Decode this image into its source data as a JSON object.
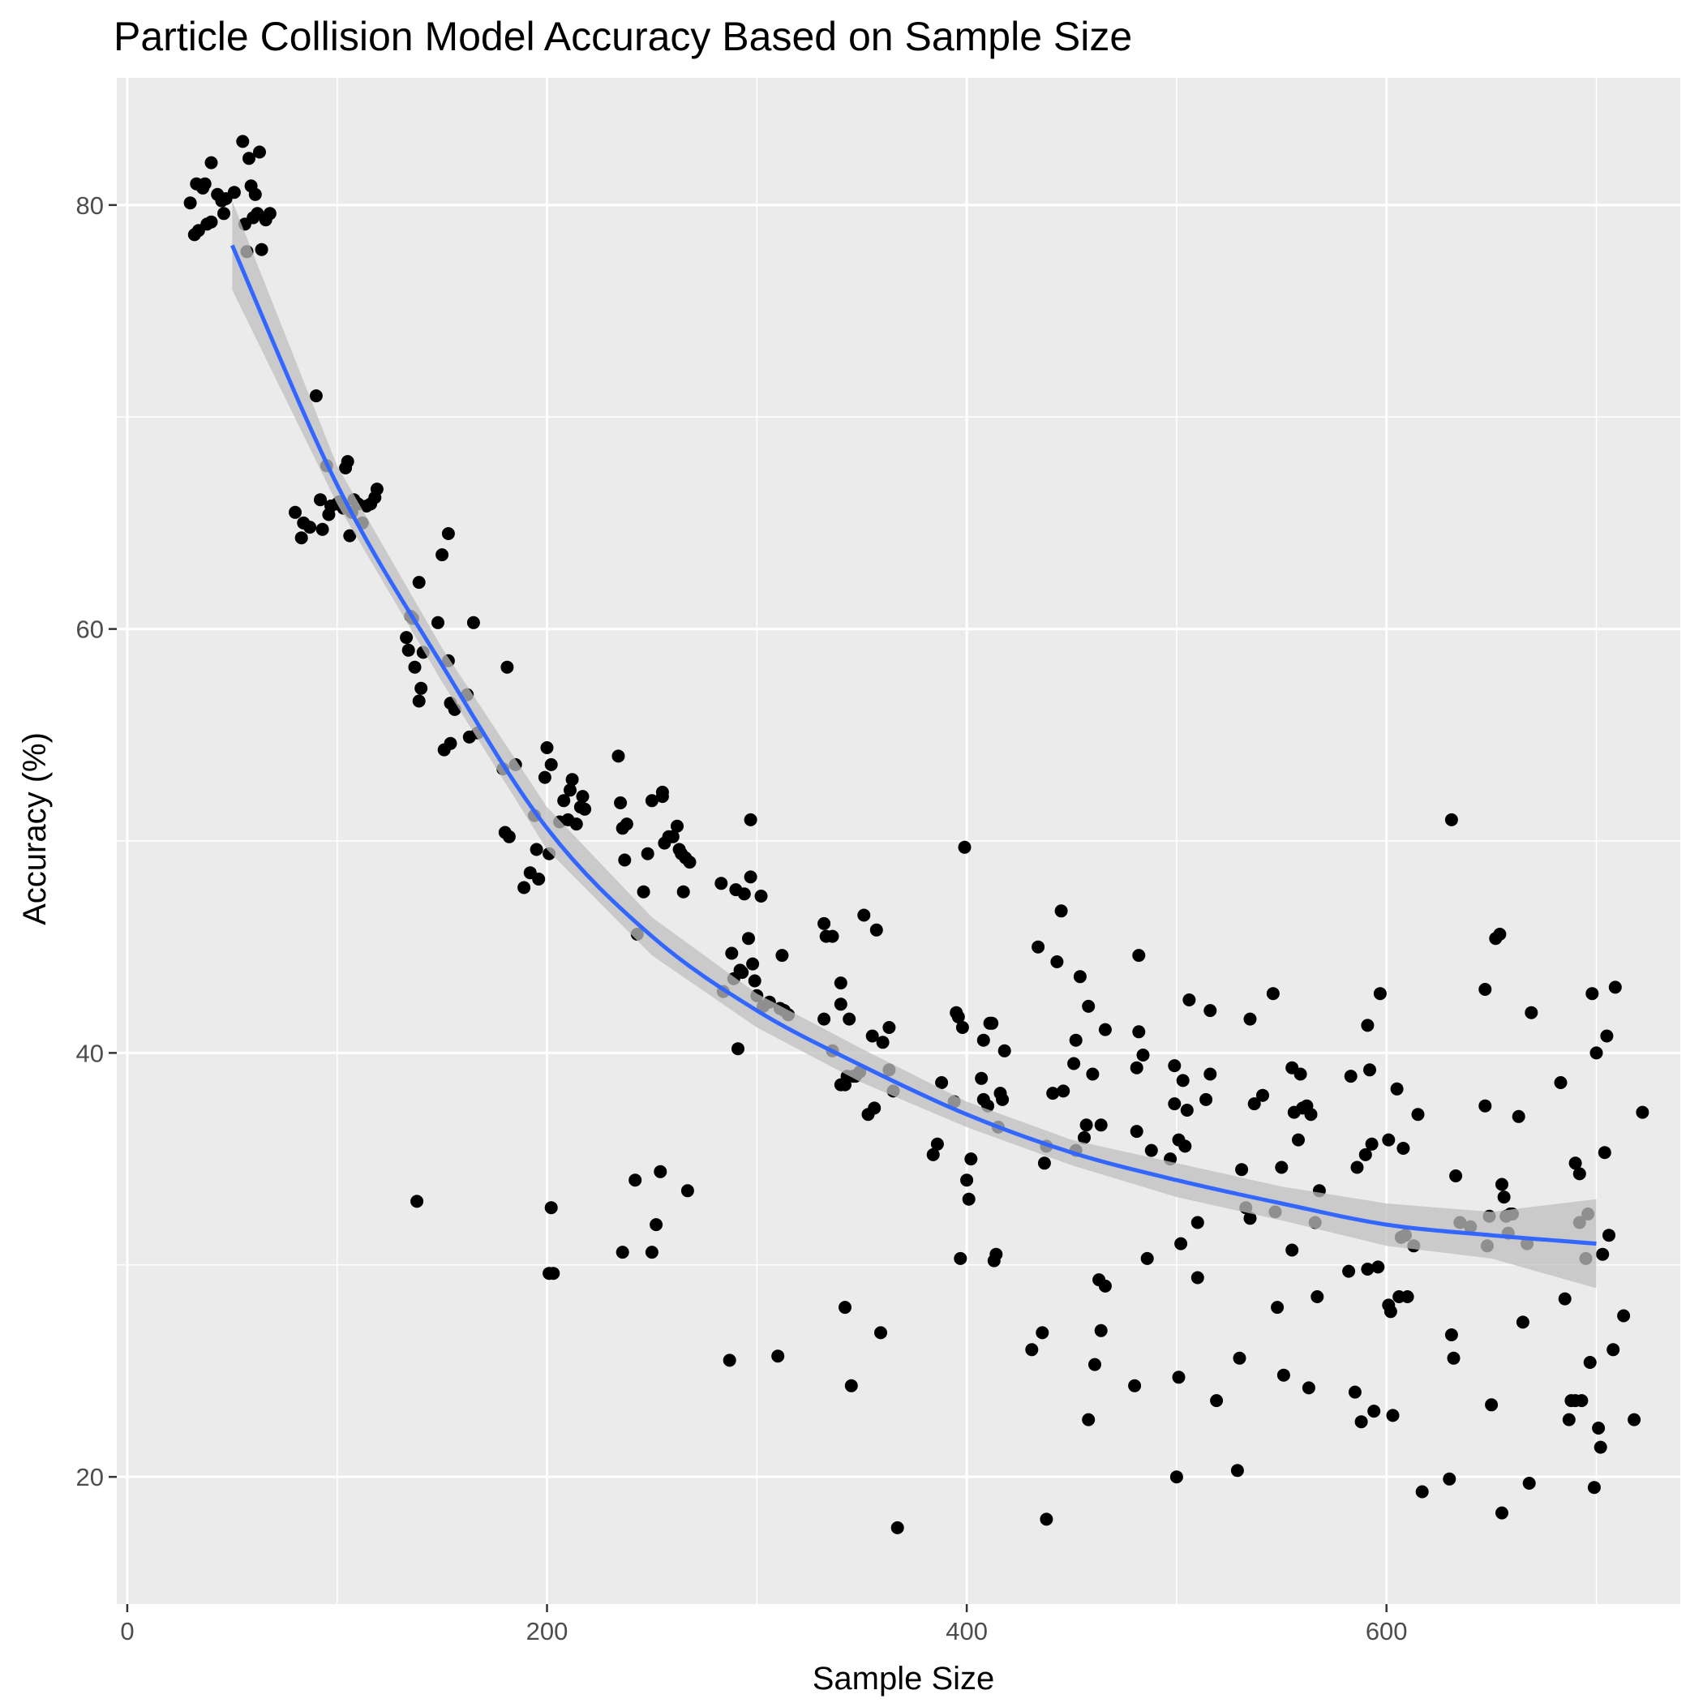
{
  "colors": {
    "panel_background": "#EBEBEB",
    "grid": "#FFFFFF",
    "points": "#000000",
    "smooth_line": "#3366FF",
    "confidence_band": "#BFBFBF",
    "tick_text": "#4D4D4D"
  },
  "chart_data": {
    "type": "scatter",
    "title": "Particle Collision Model Accuracy Based on Sample Size",
    "xlabel": "Sample Size",
    "ylabel": "Accuracy (%)",
    "xlim": [
      -5,
      740
    ],
    "ylim": [
      14,
      86
    ],
    "x_ticks": [
      0,
      200,
      400,
      600
    ],
    "y_ticks": [
      20,
      40,
      60,
      80
    ],
    "grid": true,
    "legend": "none",
    "points": [
      [
        30,
        80.1
      ],
      [
        32,
        78.6
      ],
      [
        33,
        81.0
      ],
      [
        34,
        78.8
      ],
      [
        36,
        80.8
      ],
      [
        37,
        81.0
      ],
      [
        38,
        79.1
      ],
      [
        40,
        79.2
      ],
      [
        40,
        82.0
      ],
      [
        43,
        80.5
      ],
      [
        45,
        80.2
      ],
      [
        46,
        79.6
      ],
      [
        47,
        80.3
      ],
      [
        51,
        80.6
      ],
      [
        55,
        83.0
      ],
      [
        56,
        79.1
      ],
      [
        57,
        77.8
      ],
      [
        58,
        82.2
      ],
      [
        59,
        80.9
      ],
      [
        60,
        79.4
      ],
      [
        61,
        80.5
      ],
      [
        62,
        79.6
      ],
      [
        63,
        82.5
      ],
      [
        64,
        77.9
      ],
      [
        66,
        79.3
      ],
      [
        68,
        79.6
      ],
      [
        80,
        65.5
      ],
      [
        83,
        64.3
      ],
      [
        84,
        65.0
      ],
      [
        87,
        64.8
      ],
      [
        90,
        71.0
      ],
      [
        92,
        66.1
      ],
      [
        93,
        64.7
      ],
      [
        95,
        67.7
      ],
      [
        96,
        65.4
      ],
      [
        97,
        65.8
      ],
      [
        100,
        65.9
      ],
      [
        101,
        66.0
      ],
      [
        103,
        65.7
      ],
      [
        104,
        67.6
      ],
      [
        105,
        67.9
      ],
      [
        106,
        64.4
      ],
      [
        107,
        65.5
      ],
      [
        108,
        66.1
      ],
      [
        110,
        65.9
      ],
      [
        112,
        65.0
      ],
      [
        114,
        65.8
      ],
      [
        116,
        65.9
      ],
      [
        118,
        66.2
      ],
      [
        119,
        66.6
      ],
      [
        133,
        59.6
      ],
      [
        134,
        59.0
      ],
      [
        135,
        60.6
      ],
      [
        136,
        60.5
      ],
      [
        137,
        58.2
      ],
      [
        138,
        33.0
      ],
      [
        139,
        56.6
      ],
      [
        139,
        62.2
      ],
      [
        140,
        57.2
      ],
      [
        141,
        58.9
      ],
      [
        148,
        60.3
      ],
      [
        150,
        63.5
      ],
      [
        151,
        54.3
      ],
      [
        153,
        58.5
      ],
      [
        153,
        64.5
      ],
      [
        154,
        54.6
      ],
      [
        154,
        56.5
      ],
      [
        156,
        56.2
      ],
      [
        162,
        56.9
      ],
      [
        163,
        54.9
      ],
      [
        165,
        60.3
      ],
      [
        167,
        55.1
      ],
      [
        179,
        53.4
      ],
      [
        180,
        50.4
      ],
      [
        181,
        58.2
      ],
      [
        182,
        50.2
      ],
      [
        185,
        53.6
      ],
      [
        189,
        47.8
      ],
      [
        192,
        48.5
      ],
      [
        194,
        51.2
      ],
      [
        195,
        49.6
      ],
      [
        196,
        48.2
      ],
      [
        199,
        53.0
      ],
      [
        200,
        54.4
      ],
      [
        201,
        49.4
      ],
      [
        201,
        29.6
      ],
      [
        202,
        53.6
      ],
      [
        202,
        32.7
      ],
      [
        203,
        29.6
      ],
      [
        206,
        50.9
      ],
      [
        208,
        51.9
      ],
      [
        210,
        51.0
      ],
      [
        211,
        52.4
      ],
      [
        212,
        52.9
      ],
      [
        214,
        50.8
      ],
      [
        216,
        51.6
      ],
      [
        217,
        52.1
      ],
      [
        218,
        51.5
      ],
      [
        234,
        54.0
      ],
      [
        235,
        51.8
      ],
      [
        236,
        30.6
      ],
      [
        236,
        50.6
      ],
      [
        237,
        49.1
      ],
      [
        238,
        50.8
      ],
      [
        242,
        34.0
      ],
      [
        243,
        45.6
      ],
      [
        246,
        47.6
      ],
      [
        248,
        49.4
      ],
      [
        250,
        30.6
      ],
      [
        250,
        51.9
      ],
      [
        252,
        31.9
      ],
      [
        254,
        34.4
      ],
      [
        255,
        52.1
      ],
      [
        255,
        52.3
      ],
      [
        256,
        49.9
      ],
      [
        258,
        50.2
      ],
      [
        260,
        50.2
      ],
      [
        262,
        50.7
      ],
      [
        263,
        49.6
      ],
      [
        264,
        49.4
      ],
      [
        265,
        47.6
      ],
      [
        266,
        49.2
      ],
      [
        267,
        33.5
      ],
      [
        268,
        49.0
      ],
      [
        283,
        48.0
      ],
      [
        284,
        42.9
      ],
      [
        287,
        25.5
      ],
      [
        288,
        44.7
      ],
      [
        289,
        43.5
      ],
      [
        290,
        47.7
      ],
      [
        291,
        40.2
      ],
      [
        292,
        43.9
      ],
      [
        293,
        43.8
      ],
      [
        294,
        47.5
      ],
      [
        296,
        45.4
      ],
      [
        297,
        48.3
      ],
      [
        297,
        51.0
      ],
      [
        298,
        44.2
      ],
      [
        299,
        43.4
      ],
      [
        300,
        42.7
      ],
      [
        302,
        47.4
      ],
      [
        303,
        42.2
      ],
      [
        306,
        42.4
      ],
      [
        310,
        25.7
      ],
      [
        311,
        42.1
      ],
      [
        312,
        44.6
      ],
      [
        313,
        42.0
      ],
      [
        315,
        41.8
      ],
      [
        332,
        41.6
      ],
      [
        332,
        46.1
      ],
      [
        333,
        45.5
      ],
      [
        336,
        40.1
      ],
      [
        336,
        45.5
      ],
      [
        340,
        42.3
      ],
      [
        340,
        43.3
      ],
      [
        340,
        38.5
      ],
      [
        342,
        38.5
      ],
      [
        342,
        28.0
      ],
      [
        343,
        38.9
      ],
      [
        344,
        41.6
      ],
      [
        345,
        24.3
      ],
      [
        346,
        38.9
      ],
      [
        347,
        38.9
      ],
      [
        349,
        39.1
      ],
      [
        351,
        46.5
      ],
      [
        353,
        37.1
      ],
      [
        355,
        40.8
      ],
      [
        356,
        37.4
      ],
      [
        357,
        45.8
      ],
      [
        359,
        26.8
      ],
      [
        360,
        40.5
      ],
      [
        363,
        39.2
      ],
      [
        363,
        41.2
      ],
      [
        365,
        38.2
      ],
      [
        367,
        17.6
      ],
      [
        384,
        35.2
      ],
      [
        386,
        35.7
      ],
      [
        388,
        38.6
      ],
      [
        394,
        37.7
      ],
      [
        395,
        41.9
      ],
      [
        396,
        41.7
      ],
      [
        397,
        30.3
      ],
      [
        398,
        41.2
      ],
      [
        399,
        49.7
      ],
      [
        400,
        34.0
      ],
      [
        401,
        33.1
      ],
      [
        402,
        35.0
      ],
      [
        407,
        38.8
      ],
      [
        408,
        37.8
      ],
      [
        408,
        40.6
      ],
      [
        410,
        37.5
      ],
      [
        411,
        41.4
      ],
      [
        412,
        41.4
      ],
      [
        413,
        30.2
      ],
      [
        414,
        30.5
      ],
      [
        415,
        36.5
      ],
      [
        416,
        38.1
      ],
      [
        417,
        37.8
      ],
      [
        418,
        40.1
      ],
      [
        431,
        26.0
      ],
      [
        434,
        45.0
      ],
      [
        436,
        26.8
      ],
      [
        437,
        34.8
      ],
      [
        438,
        35.6
      ],
      [
        438,
        18.0
      ],
      [
        441,
        38.1
      ],
      [
        443,
        44.3
      ],
      [
        445,
        46.7
      ],
      [
        446,
        38.2
      ],
      [
        451,
        39.5
      ],
      [
        452,
        35.4
      ],
      [
        452,
        40.6
      ],
      [
        454,
        43.6
      ],
      [
        456,
        36.0
      ],
      [
        457,
        36.6
      ],
      [
        458,
        42.2
      ],
      [
        458,
        22.7
      ],
      [
        460,
        39.0
      ],
      [
        461,
        25.3
      ],
      [
        463,
        29.3
      ],
      [
        464,
        36.6
      ],
      [
        464,
        26.9
      ],
      [
        466,
        29.0
      ],
      [
        466,
        41.1
      ],
      [
        480,
        24.3
      ],
      [
        481,
        36.3
      ],
      [
        481,
        39.3
      ],
      [
        482,
        41.0
      ],
      [
        482,
        44.6
      ],
      [
        484,
        39.9
      ],
      [
        486,
        30.3
      ],
      [
        488,
        35.4
      ],
      [
        497,
        35.0
      ],
      [
        499,
        39.4
      ],
      [
        499,
        37.6
      ],
      [
        500,
        20.0
      ],
      [
        501,
        35.9
      ],
      [
        501,
        24.7
      ],
      [
        502,
        31.0
      ],
      [
        503,
        38.7
      ],
      [
        504,
        35.6
      ],
      [
        505,
        37.3
      ],
      [
        506,
        42.5
      ],
      [
        510,
        32.0
      ],
      [
        510,
        29.4
      ],
      [
        514,
        37.8
      ],
      [
        516,
        39.0
      ],
      [
        516,
        42.0
      ],
      [
        519,
        23.6
      ],
      [
        529,
        20.3
      ],
      [
        530,
        25.6
      ],
      [
        531,
        34.5
      ],
      [
        533,
        32.7
      ],
      [
        535,
        32.2
      ],
      [
        535,
        41.6
      ],
      [
        537,
        37.6
      ],
      [
        541,
        38.0
      ],
      [
        546,
        42.8
      ],
      [
        547,
        32.5
      ],
      [
        548,
        28.0
      ],
      [
        550,
        34.6
      ],
      [
        551,
        24.8
      ],
      [
        555,
        30.7
      ],
      [
        555,
        39.3
      ],
      [
        556,
        37.2
      ],
      [
        558,
        35.9
      ],
      [
        559,
        39.0
      ],
      [
        560,
        37.4
      ],
      [
        562,
        37.5
      ],
      [
        563,
        24.2
      ],
      [
        564,
        37.1
      ],
      [
        566,
        32.0
      ],
      [
        567,
        28.5
      ],
      [
        568,
        33.5
      ],
      [
        582,
        29.7
      ],
      [
        583,
        38.9
      ],
      [
        585,
        24.0
      ],
      [
        586,
        34.6
      ],
      [
        588,
        22.6
      ],
      [
        590,
        35.2
      ],
      [
        591,
        29.8
      ],
      [
        591,
        41.3
      ],
      [
        592,
        39.2
      ],
      [
        593,
        35.7
      ],
      [
        594,
        23.1
      ],
      [
        596,
        29.9
      ],
      [
        597,
        42.8
      ],
      [
        601,
        35.9
      ],
      [
        601,
        28.1
      ],
      [
        602,
        27.8
      ],
      [
        603,
        22.9
      ],
      [
        605,
        38.3
      ],
      [
        606,
        28.5
      ],
      [
        607,
        31.3
      ],
      [
        608,
        35.5
      ],
      [
        609,
        31.4
      ],
      [
        610,
        28.5
      ],
      [
        613,
        30.9
      ],
      [
        615,
        37.1
      ],
      [
        617,
        19.3
      ],
      [
        630,
        19.9
      ],
      [
        631,
        51.0
      ],
      [
        631,
        26.7
      ],
      [
        632,
        25.6
      ],
      [
        633,
        34.2
      ],
      [
        635,
        32.0
      ],
      [
        640,
        31.8
      ],
      [
        647,
        43.0
      ],
      [
        647,
        37.5
      ],
      [
        648,
        30.9
      ],
      [
        649,
        32.3
      ],
      [
        650,
        23.4
      ],
      [
        652,
        45.4
      ],
      [
        654,
        45.6
      ],
      [
        655,
        18.3
      ],
      [
        655,
        33.8
      ],
      [
        656,
        33.2
      ],
      [
        657,
        32.3
      ],
      [
        658,
        31.5
      ],
      [
        659,
        32.4
      ],
      [
        660,
        32.4
      ],
      [
        663,
        37.0
      ],
      [
        665,
        27.3
      ],
      [
        667,
        31.0
      ],
      [
        668,
        19.7
      ],
      [
        669,
        41.9
      ],
      [
        683,
        38.6
      ],
      [
        685,
        28.4
      ],
      [
        687,
        22.7
      ],
      [
        688,
        23.6
      ],
      [
        690,
        23.6
      ],
      [
        690,
        34.8
      ],
      [
        692,
        32.0
      ],
      [
        692,
        34.3
      ],
      [
        693,
        23.6
      ],
      [
        695,
        30.3
      ],
      [
        696,
        32.4
      ],
      [
        697,
        25.4
      ],
      [
        698,
        42.8
      ],
      [
        699,
        19.5
      ],
      [
        700,
        40.0
      ],
      [
        701,
        22.3
      ],
      [
        702,
        21.4
      ],
      [
        703,
        30.5
      ],
      [
        704,
        35.3
      ],
      [
        705,
        40.8
      ],
      [
        706,
        31.4
      ],
      [
        708,
        26.0
      ],
      [
        709,
        43.1
      ],
      [
        713,
        27.6
      ],
      [
        718,
        22.7
      ],
      [
        722,
        37.2
      ]
    ],
    "smooth_fit": {
      "x": [
        50,
        100,
        150,
        200,
        250,
        300,
        350,
        400,
        450,
        500,
        550,
        600,
        650,
        700
      ],
      "y": [
        78.1,
        66.8,
        58.3,
        50.6,
        45.5,
        42.0,
        39.4,
        37.1,
        35.3,
        34.0,
        32.9,
        31.9,
        31.4,
        31.0
      ],
      "ci_lower": [
        76.0,
        65.9,
        57.5,
        49.6,
        44.6,
        41.2,
        38.6,
        36.5,
        34.7,
        33.2,
        32.1,
        30.9,
        30.3,
        28.9
      ],
      "ci_upper": [
        80.2,
        67.7,
        59.1,
        51.6,
        46.4,
        42.8,
        40.2,
        37.7,
        35.9,
        34.8,
        33.7,
        32.9,
        32.5,
        33.1
      ]
    }
  }
}
